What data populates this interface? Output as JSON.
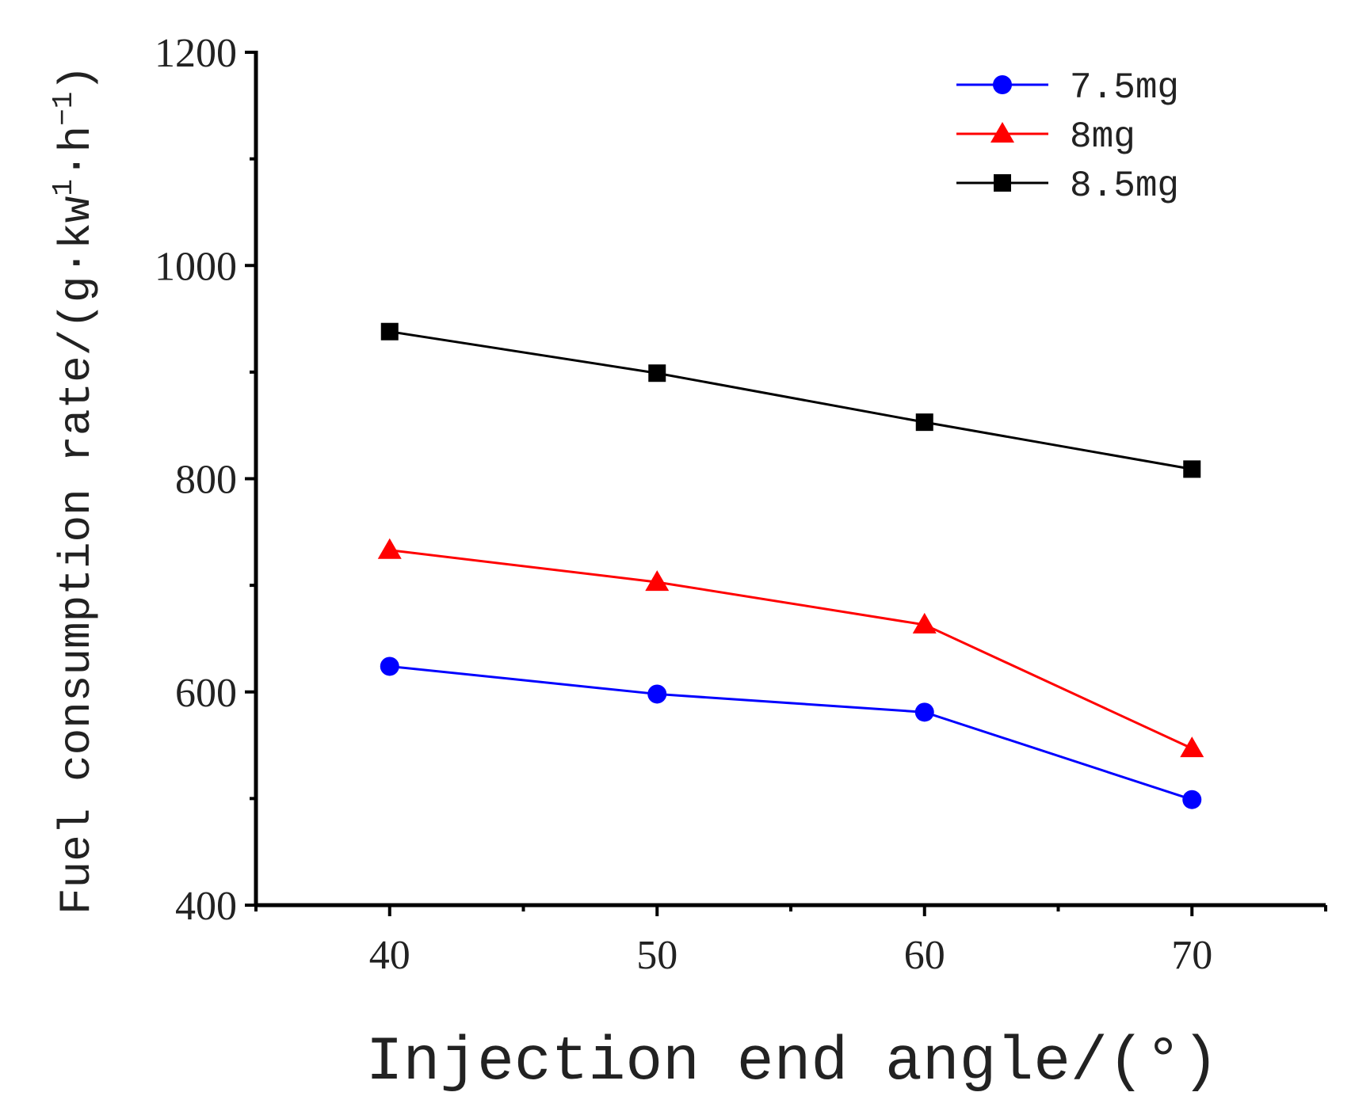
{
  "chart_data": {
    "type": "line",
    "title": "",
    "xlabel": "Injection end angle/(°)",
    "ylabel": "Fuel consumption rate/(g·kw",
    "ylabel_sup1": "1",
    "ylabel_mid": "·h",
    "ylabel_sup2": "−1",
    "ylabel_end": ")",
    "x": [
      40,
      50,
      60,
      70
    ],
    "xlim": [
      35,
      75
    ],
    "ylim": [
      400,
      1200
    ],
    "xticks": [
      "40",
      "50",
      "60",
      "70"
    ],
    "yticks": [
      "400",
      "600",
      "800",
      "1000",
      "1200"
    ],
    "grid": false,
    "legend_position": "top-right",
    "series": [
      {
        "name": "7.5mg",
        "color": "#0000ff",
        "marker": "circle",
        "values": [
          624,
          598,
          581,
          499
        ]
      },
      {
        "name": "8mg",
        "color": "#ff0000",
        "marker": "triangle",
        "values": [
          733,
          703,
          663,
          547
        ]
      },
      {
        "name": "8.5mg",
        "color": "#000000",
        "marker": "square",
        "values": [
          938,
          899,
          853,
          809
        ]
      }
    ]
  }
}
